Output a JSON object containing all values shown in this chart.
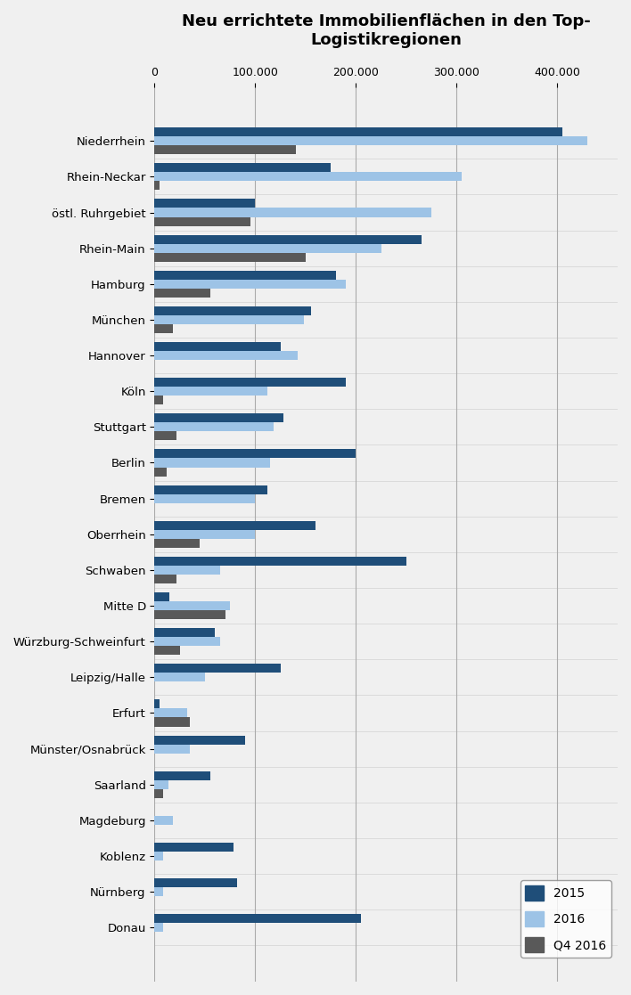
{
  "title": "Neu errichtete Immobilienflächen in den Top-\nLogistikregionen",
  "categories": [
    "Niederrhein",
    "Rhein-Neckar",
    "östl. Ruhrgebiet",
    "Rhein-Main",
    "Hamburg",
    "München",
    "Hannover",
    "Köln",
    "Stuttgart",
    "Berlin",
    "Bremen",
    "Oberrhein",
    "Schwaben",
    "Mitte D",
    "Würzburg-Schweinfurt",
    "Leipzig/Halle",
    "Erfurt",
    "Münster/Osnabrück",
    "Saarland",
    "Magdeburg",
    "Koblenz",
    "Nürnberg",
    "Donau"
  ],
  "values_2015": [
    405000,
    175000,
    100000,
    265000,
    180000,
    155000,
    125000,
    190000,
    128000,
    200000,
    112000,
    160000,
    250000,
    15000,
    60000,
    125000,
    5000,
    90000,
    55000,
    0,
    78000,
    82000,
    205000
  ],
  "values_2016": [
    430000,
    305000,
    275000,
    225000,
    190000,
    148000,
    142000,
    112000,
    118000,
    115000,
    100000,
    100000,
    65000,
    75000,
    65000,
    50000,
    32000,
    35000,
    14000,
    18000,
    8000,
    8000,
    8000
  ],
  "values_q4_2016": [
    140000,
    5000,
    95000,
    150000,
    55000,
    18000,
    0,
    8000,
    22000,
    12000,
    0,
    45000,
    22000,
    70000,
    25000,
    0,
    35000,
    0,
    8000,
    0,
    0,
    0,
    0
  ],
  "color_2015": "#1f4e79",
  "color_2016": "#9dc3e6",
  "color_q4": "#595959",
  "background_color": "#f0f0f0",
  "xlim": [
    0,
    460000
  ],
  "xtick_labels": [
    "0",
    "100.000",
    "200.000",
    "300.000",
    "400.000"
  ],
  "xtick_values": [
    0,
    100000,
    200000,
    300000,
    400000
  ]
}
